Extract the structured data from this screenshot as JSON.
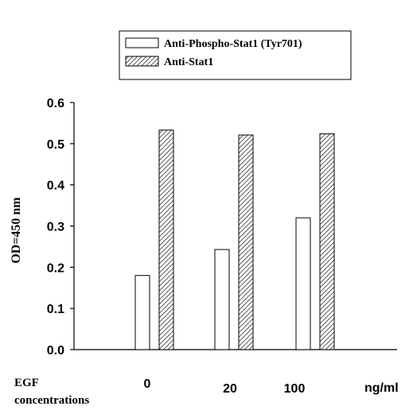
{
  "chart_data": {
    "type": "bar",
    "categories": [
      "0",
      "20",
      "100"
    ],
    "series": [
      {
        "name": "Anti-Phospho-Stat1 (Tyr701)",
        "values": [
          0.18,
          0.243,
          0.32
        ],
        "pattern": "open"
      },
      {
        "name": "Anti-Stat1",
        "values": [
          0.533,
          0.521,
          0.524
        ],
        "pattern": "hatched"
      }
    ],
    "ylabel": "OD=450 nm",
    "ylim": [
      0,
      0.6
    ],
    "yticks": [
      "0.0",
      "0.1",
      "0.2",
      "0.3",
      "0.4",
      "0.5",
      "0.6"
    ],
    "xlabel_left": [
      "EGF",
      "concentrations"
    ],
    "xlabel_unit": "ng/ml",
    "grid": false,
    "legend_position": "top"
  },
  "colors": {
    "ink": "#000000",
    "fill": "#ffffff"
  }
}
